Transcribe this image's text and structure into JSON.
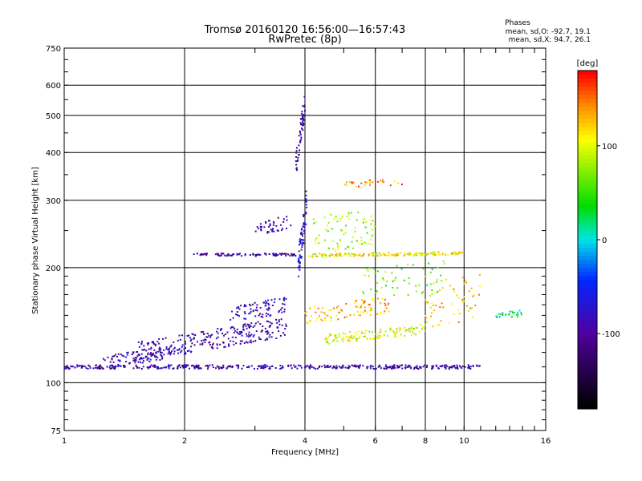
{
  "chart_data": {
    "type": "scatter",
    "title": "Tromsø 20160120 16:56:00—16:57:43",
    "subtitle": "RwPretec (8p)",
    "xlabel": "Frequency [MHz]",
    "ylabel": "Stationary phase Virtual Height [km]",
    "x_scale": "log",
    "y_scale": "log",
    "xlim": [
      1,
      16
    ],
    "ylim": [
      75,
      750
    ],
    "x_ticks": [
      1,
      2,
      4,
      6,
      8,
      10,
      16
    ],
    "y_ticks": [
      75,
      100,
      200,
      300,
      400,
      500,
      600,
      750
    ],
    "grid": true,
    "phase_box": {
      "title": "Phases",
      "line_o": "mean, sd,O:  -92.7, 19.1",
      "line_x": "mean, sd,X:  94.7, 26.1"
    },
    "colorbar": {
      "label": "[deg]",
      "range": [
        -180,
        180
      ],
      "ticks": [
        100,
        0,
        -100
      ]
    },
    "traces": [
      {
        "from": [
          1.0,
          110
        ],
        "to": [
          11.0,
          110
        ],
        "phase": -95,
        "count": 420,
        "jitter": 0.012
      },
      {
        "from": [
          1.25,
          113
        ],
        "to": [
          2.0,
          122
        ],
        "phase": -90,
        "count": 90,
        "jitter": 0.04
      },
      {
        "from": [
          1.5,
          120
        ],
        "to": [
          3.6,
          140
        ],
        "phase": -92,
        "count": 260,
        "jitter": 0.06
      },
      {
        "from": [
          2.1,
          216
        ],
        "to": [
          3.8,
          216
        ],
        "phase": -100,
        "count": 90,
        "jitter": 0.008
      },
      {
        "from": [
          2.6,
          150
        ],
        "to": [
          3.6,
          160
        ],
        "phase": -85,
        "count": 80,
        "jitter": 0.05
      },
      {
        "from": [
          3.0,
          250
        ],
        "to": [
          3.7,
          265
        ],
        "phase": -95,
        "count": 40,
        "jitter": 0.04
      },
      {
        "from": [
          3.8,
          370
        ],
        "to": [
          4.0,
          540
        ],
        "phase": -100,
        "count": 60,
        "jitter": 0.08
      },
      {
        "from": [
          3.85,
          200
        ],
        "to": [
          4.05,
          300
        ],
        "phase": -80,
        "count": 70,
        "jitter": 0.1
      },
      {
        "from": [
          4.0,
          215
        ],
        "to": [
          10.0,
          218
        ],
        "phase": 110,
        "count": 160,
        "jitter": 0.01
      },
      {
        "from": [
          4.0,
          150
        ],
        "to": [
          6.5,
          160
        ],
        "phase": 130,
        "count": 90,
        "jitter": 0.05
      },
      {
        "from": [
          4.5,
          130
        ],
        "to": [
          8.0,
          138
        ],
        "phase": 100,
        "count": 120,
        "jitter": 0.03
      },
      {
        "from": [
          4.2,
          240
        ],
        "to": [
          6.0,
          260
        ],
        "phase": 80,
        "count": 80,
        "jitter": 0.12
      },
      {
        "from": [
          5.0,
          330
        ],
        "to": [
          7.0,
          335
        ],
        "phase": 140,
        "count": 30,
        "jitter": 0.02
      },
      {
        "from": [
          5.5,
          180
        ],
        "to": [
          9.0,
          190
        ],
        "phase": 60,
        "count": 60,
        "jitter": 0.1
      },
      {
        "from": [
          8.0,
          160
        ],
        "to": [
          11.0,
          170
        ],
        "phase": 120,
        "count": 60,
        "jitter": 0.15
      },
      {
        "from": [
          12.0,
          150
        ],
        "to": [
          14.0,
          152
        ],
        "phase": 20,
        "count": 25,
        "jitter": 0.02
      }
    ]
  }
}
